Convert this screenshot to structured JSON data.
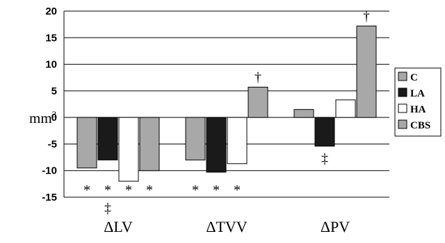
{
  "chart_data": {
    "type": "bar",
    "title": "",
    "xlabel": "",
    "ylabel": "mm",
    "ylabel_superscript": "3",
    "ylim": [
      -15,
      20
    ],
    "yticks": [
      20,
      15,
      10,
      5,
      0,
      -5,
      -10,
      -15
    ],
    "grid": true,
    "legend_position": "right",
    "categories": [
      "ΔLV",
      "ΔTVV",
      "ΔPV"
    ],
    "series": [
      {
        "name": "C",
        "color": "#a8a8a8",
        "values": [
          -9.5,
          -8.0,
          1.5
        ]
      },
      {
        "name": "LA",
        "color": "#1a1a1a",
        "values": [
          -8.0,
          -10.3,
          -5.4
        ]
      },
      {
        "name": "HA",
        "color": "#ffffff",
        "values": [
          -12.0,
          -8.7,
          3.3
        ]
      },
      {
        "name": "CBS",
        "color": "#a8a8a8",
        "values": [
          -10.0,
          5.7,
          17.2
        ]
      }
    ],
    "annotations": [
      {
        "category": 0,
        "series": 0,
        "text": "*",
        "place": "bottom"
      },
      {
        "category": 0,
        "series": 1,
        "text": "*",
        "place": "bottom"
      },
      {
        "category": 0,
        "series": 1,
        "text": "‡",
        "place": "below-axis"
      },
      {
        "category": 0,
        "series": 2,
        "text": "*",
        "place": "bottom"
      },
      {
        "category": 0,
        "series": 3,
        "text": "*",
        "place": "bottom"
      },
      {
        "category": 1,
        "series": 0,
        "text": "*",
        "place": "bottom"
      },
      {
        "category": 1,
        "series": 1,
        "text": "*",
        "place": "bottom"
      },
      {
        "category": 1,
        "series": 2,
        "text": "*",
        "place": "bottom"
      },
      {
        "category": 1,
        "series": 3,
        "text": "†",
        "place": "above-bar"
      },
      {
        "category": 2,
        "series": 1,
        "text": "‡",
        "place": "below-bar"
      },
      {
        "category": 2,
        "series": 3,
        "text": "†",
        "place": "above-bar"
      }
    ]
  }
}
